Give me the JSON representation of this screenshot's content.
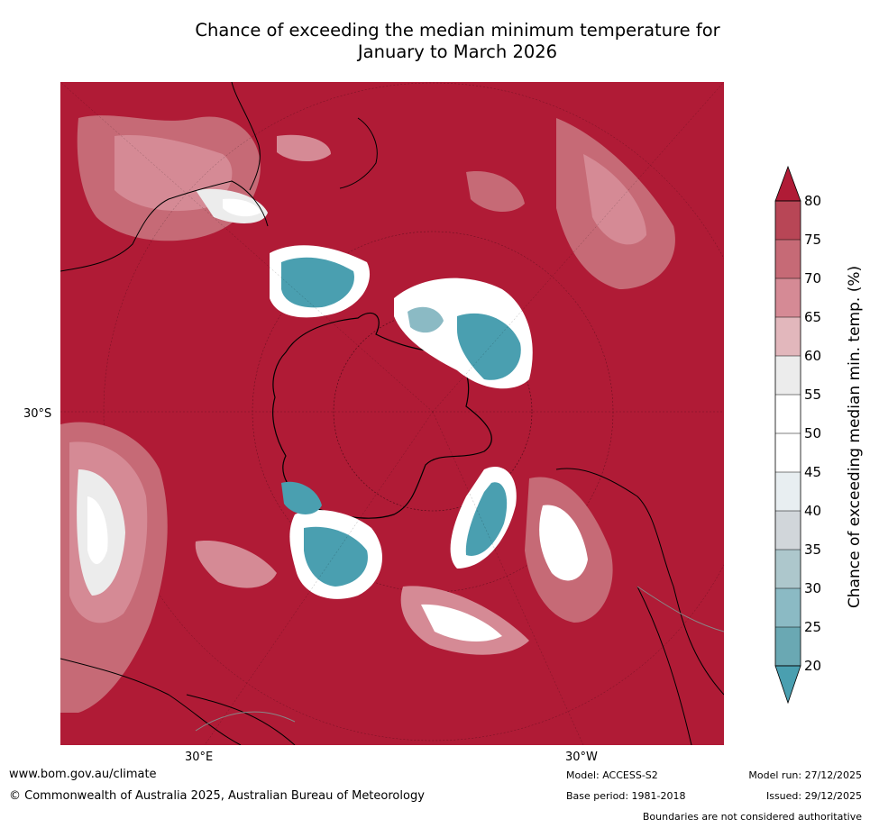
{
  "title": {
    "line1": "Chance of exceeding the median minimum temperature for",
    "line2": "January to March 2026"
  },
  "map": {
    "projection": "south polar stereographic",
    "lat_label": "30°S",
    "lon_labels": [
      "30°E",
      "30°W"
    ],
    "background_color": "#b01b36",
    "land_outline_color": "#000000"
  },
  "colorbar": {
    "label": "Chance of exceeding median min. temp. (%)",
    "ticks": [
      "20",
      "25",
      "30",
      "35",
      "40",
      "45",
      "50",
      "55",
      "60",
      "65",
      "70",
      "75",
      "80"
    ],
    "bins": [
      {
        "range": "20-25",
        "color": "#6aa8b3"
      },
      {
        "range": "25-30",
        "color": "#8bbac4"
      },
      {
        "range": "30-35",
        "color": "#adc7cc"
      },
      {
        "range": "35-40",
        "color": "#d1d6da"
      },
      {
        "range": "40-45",
        "color": "#e8eef1"
      },
      {
        "range": "45-50",
        "color": "#ffffff"
      },
      {
        "range": "50-55",
        "color": "#ffffff"
      },
      {
        "range": "55-60",
        "color": "#ececec"
      },
      {
        "range": "60-65",
        "color": "#e2b7bc"
      },
      {
        "range": "65-70",
        "color": "#d58a95"
      },
      {
        "range": "70-75",
        "color": "#c66a76"
      },
      {
        "range": "75-80",
        "color": "#b84656"
      }
    ],
    "under_color": "#4a9fb0",
    "over_color": "#b01b36"
  },
  "footer": {
    "website": "www.bom.gov.au/climate",
    "copyright": "© Commonwealth of Australia 2025, Australian Bureau of Meteorology",
    "model": "Model: ACCESS-S2",
    "base_period": "Base period: 1981-2018",
    "model_run": "Model run: 27/12/2025",
    "issued": "Issued: 29/12/2025",
    "disclaimer": "Boundaries are not considered authoritative"
  }
}
